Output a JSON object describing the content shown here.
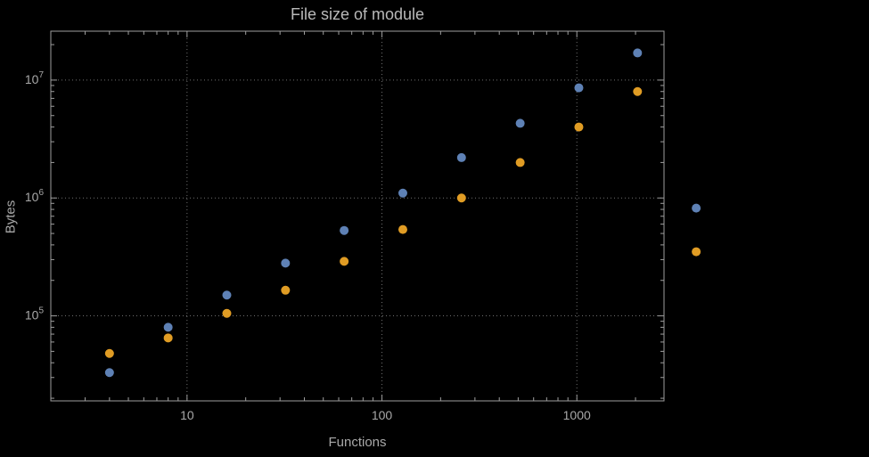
{
  "chart_data": {
    "type": "scatter",
    "title": "File size of module",
    "xlabel": "Functions",
    "ylabel": "Bytes",
    "x_scale": "log",
    "y_scale": "log",
    "xlim": [
      2,
      2800
    ],
    "ylim": [
      19000,
      26000000
    ],
    "x_major_ticks": [
      10,
      100,
      1000
    ],
    "x_major_tick_labels": [
      "10",
      "100",
      "1000"
    ],
    "y_major_tick_exponents": [
      5,
      6,
      7
    ],
    "grid": "dotted",
    "legend": "none",
    "colors": {
      "background": "#000000",
      "frame": "#9e9e9e",
      "grid": "#6f6f6f",
      "text": "#a8a8a8",
      "series1": "#5E81B5",
      "series2": "#E09C24"
    },
    "series": [
      {
        "name": "series-1-blue",
        "color": "#5E81B5",
        "points": [
          [
            4,
            33000
          ],
          [
            8,
            80000
          ],
          [
            16,
            150000
          ],
          [
            32,
            280000
          ],
          [
            64,
            530000
          ],
          [
            128,
            1100000
          ],
          [
            256,
            2200000
          ],
          [
            512,
            4300000
          ],
          [
            1024,
            8600000
          ],
          [
            2048,
            17000000
          ],
          [
            4096,
            820000
          ]
        ]
      },
      {
        "name": "series-2-orange",
        "color": "#E09C24",
        "points": [
          [
            4,
            48000
          ],
          [
            8,
            65000
          ],
          [
            16,
            105000
          ],
          [
            32,
            165000
          ],
          [
            64,
            290000
          ],
          [
            128,
            540000
          ],
          [
            256,
            1000000
          ],
          [
            512,
            2000000
          ],
          [
            1024,
            4000000
          ],
          [
            2048,
            8000000
          ],
          [
            4096,
            350000
          ]
        ]
      }
    ]
  }
}
